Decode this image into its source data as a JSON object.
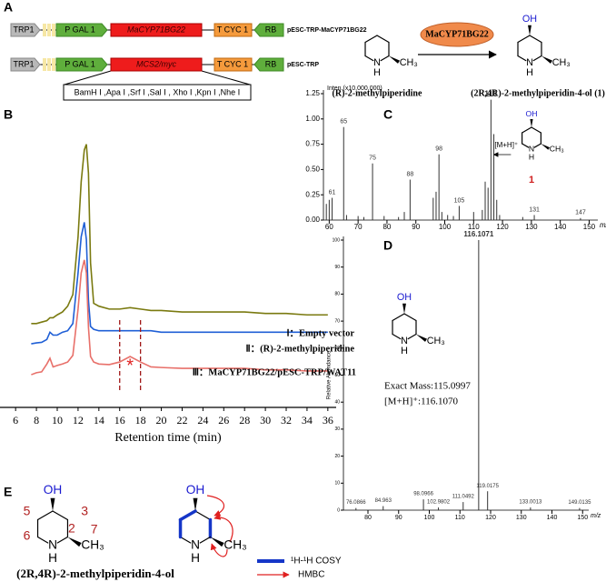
{
  "panel_labels": {
    "a": "A",
    "b": "B",
    "c": "C",
    "d": "D",
    "e": "E"
  },
  "panel_a": {
    "constructs": [
      {
        "marker": "TRP1",
        "promoter": "P GAL 1",
        "gene": "MaCYP71BG22",
        "terminator": "T CYC 1",
        "border": "RB",
        "plasmid": "pESC-TRP-MaCYP71BG22"
      },
      {
        "marker": "TRP1",
        "promoter": "P GAL 1",
        "gene": "MCS2/myc",
        "terminator": "T CYC 1",
        "border": "RB",
        "plasmid": "pESC-TRP"
      }
    ],
    "sites": "BamH Ⅰ ,Apa Ⅰ ,Srf Ⅰ ,Sal Ⅰ , Xho Ⅰ ,Kpn Ⅰ ,Nhe Ⅰ",
    "enzyme": "MaCYP71BG22",
    "substrate": {
      "name": "(R)-2-methylpiperidine",
      "atoms": {
        "n": "N",
        "h": "H",
        "me": "CH₃"
      }
    },
    "product": {
      "name": "(2R,4R)-2-methylpiperidin-4-ol (1)",
      "atoms": {
        "oh": "OH",
        "n": "N",
        "h": "H",
        "me": "CH₃"
      }
    }
  },
  "chart_data": [
    {
      "type": "line",
      "xlabel": "Retention time (min)",
      "x": [
        7.5,
        8,
        8.5,
        9,
        9.3,
        9.6,
        10,
        10.5,
        11,
        11.5,
        12,
        12.3,
        12.6,
        12.8,
        13,
        13.2,
        13.5,
        14,
        15,
        16,
        17,
        18,
        19,
        20,
        22,
        24,
        26,
        28,
        30,
        32,
        34,
        36
      ],
      "xlim": [
        4.5,
        36.8
      ],
      "xticks": [
        6,
        8,
        10,
        12,
        14,
        16,
        18,
        20,
        22,
        24,
        26,
        28,
        30,
        32,
        34,
        36
      ],
      "ylim": [
        0,
        100
      ],
      "series": [
        {
          "name": "Ⅰ：Empty vector",
          "color": "#7a7a10",
          "values": [
            29,
            29,
            29.5,
            30,
            31,
            31,
            32,
            33,
            35,
            39,
            59,
            78,
            89,
            91,
            81,
            50,
            36,
            35,
            34,
            34,
            34.5,
            34,
            33.5,
            33.5,
            33,
            33,
            33,
            33,
            32.5,
            32.5,
            32,
            32
          ]
        },
        {
          "name": "Ⅱ：(R)-2-methylpiperidine",
          "color": "#1f5fd6",
          "values": [
            22,
            22.3,
            22.5,
            23.5,
            26,
            25,
            25,
            26,
            26.5,
            29,
            46.5,
            59,
            64,
            58,
            37,
            28,
            27,
            26.5,
            26.5,
            26.5,
            26.5,
            26.5,
            26.5,
            26,
            26,
            26,
            26,
            26,
            26,
            26,
            26,
            26
          ]
        },
        {
          "name": "Ⅲ：MaCYP71BG22/pESC-TRP/WAT11",
          "color": "#e8706a",
          "values": [
            11.3,
            12,
            12.3,
            15,
            17,
            14,
            14.5,
            15,
            15.7,
            18,
            34,
            46.5,
            51,
            46.5,
            27.7,
            17.6,
            15.7,
            15,
            14.8,
            15.7,
            17.6,
            15.7,
            14,
            13.8,
            13.5,
            13.5,
            13.5,
            13.5,
            13,
            13,
            12.6,
            12.6
          ]
        }
      ],
      "highlight_x": [
        16,
        18
      ],
      "highlight_mark": "*"
    },
    {
      "type": "stem",
      "ylabel": "Inten.(x10,000,000)",
      "xlabel": "m/z",
      "xlim": [
        58,
        153
      ],
      "xticks": [
        60,
        70,
        80,
        90,
        100,
        110,
        120,
        130,
        140,
        150
      ],
      "ylim": [
        0,
        1.25
      ],
      "yticks": [
        {
          "value": 0,
          "label": "0.00"
        },
        {
          "value": 0.25,
          "label": "0.25"
        },
        {
          "value": 0.5,
          "label": "0.50"
        },
        {
          "value": 0.75,
          "label": "0.75"
        },
        {
          "value": 1,
          "label": "1.00"
        },
        {
          "value": 1.25,
          "label": "1.25"
        }
      ],
      "series": [
        {
          "color": "#333333",
          "x": [
            61,
            65,
            75,
            88,
            98,
            105,
            116,
            131,
            147
          ],
          "values": [
            0.22,
            0.92,
            0.56,
            0.4,
            0.65,
            0.14,
            1.19,
            0.05,
            0.02
          ]
        },
        {
          "color": "#333333",
          "x": [
            59,
            60,
            66,
            70,
            72,
            79,
            84,
            86,
            96,
            97,
            99,
            101,
            103,
            110,
            113,
            114,
            115,
            117,
            118,
            119,
            127
          ],
          "values": [
            0.16,
            0.2,
            0.05,
            0.04,
            0.03,
            0.04,
            0.03,
            0.08,
            0.22,
            0.28,
            0.08,
            0.05,
            0.04,
            0.08,
            0.1,
            0.38,
            0.32,
            0.85,
            0.2,
            0.05,
            0.03
          ]
        }
      ],
      "annotation": "[M+H]⁺",
      "structure": {
        "atoms": {
          "oh": "OH",
          "n": "N",
          "h": "H",
          "me": "CH₃"
        },
        "label": "1"
      }
    },
    {
      "type": "stem",
      "ylabel": "Relative Abundance",
      "xlabel": "m/z",
      "xlim": [
        72,
        152
      ],
      "xticks": [
        80,
        90,
        100,
        110,
        120,
        130,
        140,
        150
      ],
      "ylim": [
        0,
        100
      ],
      "yticks": [
        0,
        10,
        20,
        30,
        40,
        50,
        60,
        70,
        80,
        90,
        100
      ],
      "series": [
        {
          "color": "#333333",
          "x": [
            76.0866,
            84.963,
            98.0966,
            102.9802,
            111.0492,
            116.1071,
            119.0175,
            133.0013,
            149.0135
          ],
          "values": [
            0.8,
            1.5,
            4,
            1,
            3,
            100,
            7,
            1,
            0.8
          ]
        }
      ],
      "structure": {
        "atoms": {
          "oh": "OH",
          "n": "N",
          "h": "H",
          "me": "CH₃"
        }
      },
      "annotations": [
        "Exact Mass:115.0997",
        "[M+H]⁺:116.1070"
      ]
    }
  ],
  "panel_e": {
    "structure": {
      "atoms": {
        "oh": "OH",
        "n": "N",
        "h": "H",
        "me": "CH₃"
      },
      "numbers": [
        "5",
        "3",
        "6",
        "2",
        "7"
      ]
    },
    "name": "(2R,4R)-2-methylpiperidin-4-ol",
    "correlations": {
      "atoms": {
        "oh": "OH",
        "n": "N",
        "h": "H",
        "me": "CH₃"
      }
    },
    "legend": [
      "¹H-¹H COSY",
      "HMBC"
    ]
  }
}
